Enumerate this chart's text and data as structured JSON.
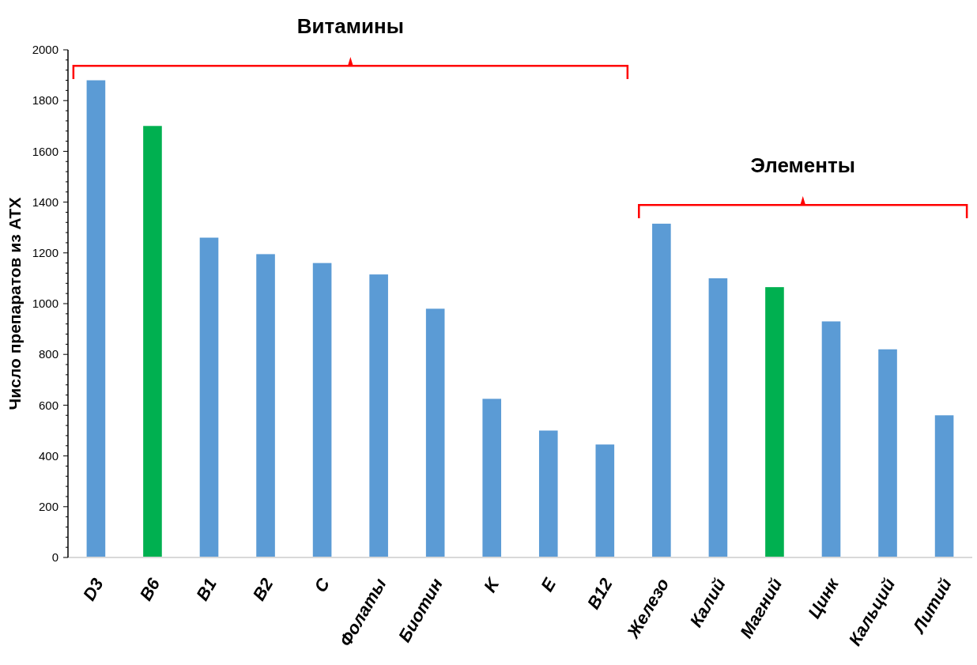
{
  "chart_data": {
    "type": "bar",
    "ylabel": "Число препаратов из АТХ",
    "categories": [
      "D3",
      "B6",
      "B1",
      "B2",
      "C",
      "Фолаты",
      "Биотин",
      "K",
      "E",
      "B12",
      "Железо",
      "Калий",
      "Магний",
      "Цинк",
      "Кальций",
      "Литий"
    ],
    "values": [
      1880,
      1700,
      1260,
      1195,
      1160,
      1115,
      980,
      625,
      500,
      445,
      1315,
      1100,
      1065,
      930,
      820,
      560
    ],
    "colors": [
      "#5b9bd5",
      "#00b050",
      "#5b9bd5",
      "#5b9bd5",
      "#5b9bd5",
      "#5b9bd5",
      "#5b9bd5",
      "#5b9bd5",
      "#5b9bd5",
      "#5b9bd5",
      "#5b9bd5",
      "#5b9bd5",
      "#00b050",
      "#5b9bd5",
      "#5b9bd5",
      "#5b9bd5"
    ],
    "ylim": [
      0,
      2000
    ],
    "yticks": [
      0,
      200,
      400,
      600,
      800,
      1000,
      1200,
      1400,
      1600,
      1800,
      2000
    ],
    "annotations": [
      "Витамины",
      "Элементы"
    ]
  }
}
